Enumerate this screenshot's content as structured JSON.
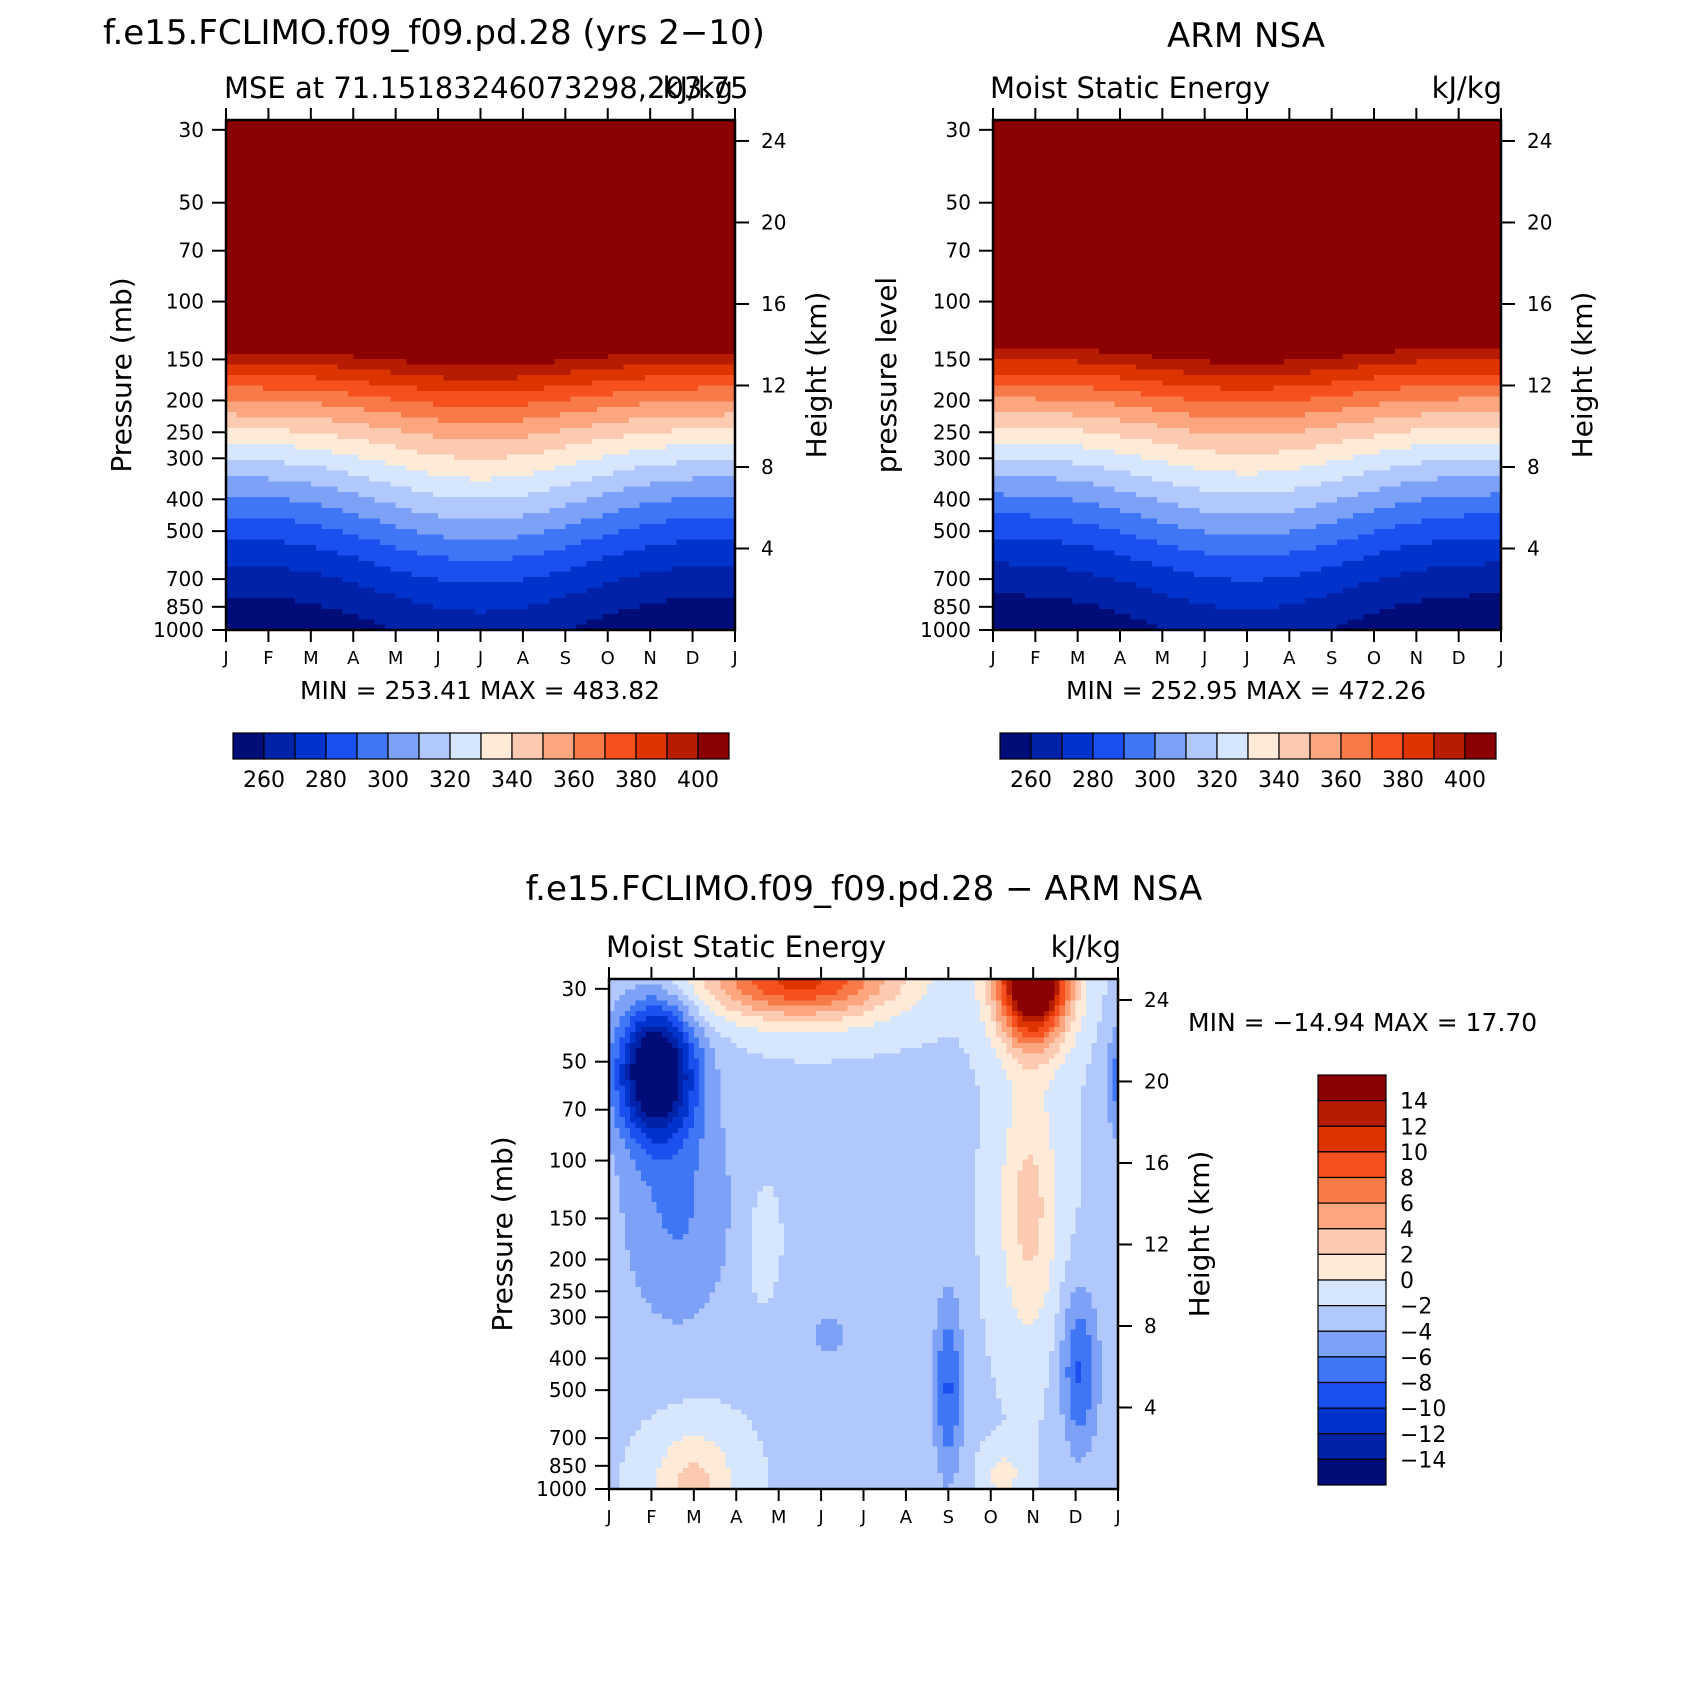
{
  "chart_data": [
    {
      "id": "model",
      "type": "heatmap",
      "title": "f.e15.FCLIMO.f09_f09.pd.28 (yrs 2−10)",
      "subtitle_left": "MSE at 71.15183246073298,203.75",
      "subtitle_right": "kJ/kg",
      "ylabel": "Pressure (mb)",
      "ylabel_right": "Height (km)",
      "x_ticks": [
        "J",
        "F",
        "M",
        "A",
        "M",
        "J",
        "J",
        "A",
        "S",
        "O",
        "N",
        "D",
        "J"
      ],
      "y_ticks": [
        30,
        50,
        70,
        100,
        150,
        200,
        250,
        300,
        400,
        500,
        700,
        850,
        1000
      ],
      "y_ticks_right": [
        24,
        20,
        16,
        12,
        8,
        4
      ],
      "min_max": "MIN = 253.41 MAX = 483.82",
      "colorbar_labels": [
        "260",
        "280",
        "300",
        "320",
        "340",
        "360",
        "380",
        "400"
      ],
      "contour_base": 250,
      "contour_step": 10,
      "month_values_at_1000mb": [
        253.4,
        254.0,
        255.0,
        258.0,
        262.0,
        268.0,
        271.0,
        269.0,
        263.0,
        258.0,
        255.0,
        254.0,
        253.4
      ]
    },
    {
      "id": "obs",
      "type": "heatmap",
      "title": "ARM NSA",
      "subtitle_left": "Moist Static Energy",
      "subtitle_right": "kJ/kg",
      "ylabel": "pressure level",
      "ylabel_right": "Height (km)",
      "x_ticks": [
        "J",
        "F",
        "M",
        "A",
        "M",
        "J",
        "J",
        "A",
        "S",
        "O",
        "N",
        "D",
        "J"
      ],
      "y_ticks": [
        30,
        50,
        70,
        100,
        150,
        200,
        250,
        300,
        400,
        500,
        700,
        850,
        1000
      ],
      "y_ticks_right": [
        24,
        20,
        16,
        12,
        8,
        4
      ],
      "min_max": "MIN = 252.95 MAX = 472.26",
      "colorbar_labels": [
        "260",
        "280",
        "300",
        "320",
        "340",
        "360",
        "380",
        "400"
      ],
      "contour_base": 250,
      "contour_step": 10
    },
    {
      "id": "diff",
      "type": "heatmap",
      "title": "f.e15.FCLIMO.f09_f09.pd.28 − ARM NSA",
      "subtitle_left": "Moist Static Energy",
      "subtitle_right": "kJ/kg",
      "ylabel": "Pressure (mb)",
      "ylabel_right": "Height (km)",
      "x_ticks": [
        "J",
        "F",
        "M",
        "A",
        "M",
        "J",
        "J",
        "A",
        "S",
        "O",
        "N",
        "D",
        "J"
      ],
      "y_ticks": [
        30,
        50,
        70,
        100,
        150,
        200,
        250,
        300,
        400,
        500,
        700,
        850,
        1000
      ],
      "y_ticks_right": [
        24,
        20,
        16,
        12,
        8,
        4
      ],
      "min_max": "MIN = −14.94 MAX =   17.70",
      "colorbar_labels": [
        "14",
        "12",
        "10",
        "8",
        "6",
        "4",
        "2",
        "0",
        "−2",
        "−4",
        "−6",
        "−8",
        "−10",
        "−12",
        "−14"
      ],
      "contour_base": -16,
      "contour_step": 2
    }
  ],
  "colors": {
    "palette": [
      "#000c78",
      "#0022a8",
      "#0033cc",
      "#1a4ff0",
      "#3f76f5",
      "#7ca1f7",
      "#b0c8fb",
      "#d6e7fd",
      "#ffe9d7",
      "#fccab0",
      "#fba67e",
      "#f87a48",
      "#f5501d",
      "#dd3400",
      "#b61c00",
      "#8b0000"
    ]
  }
}
